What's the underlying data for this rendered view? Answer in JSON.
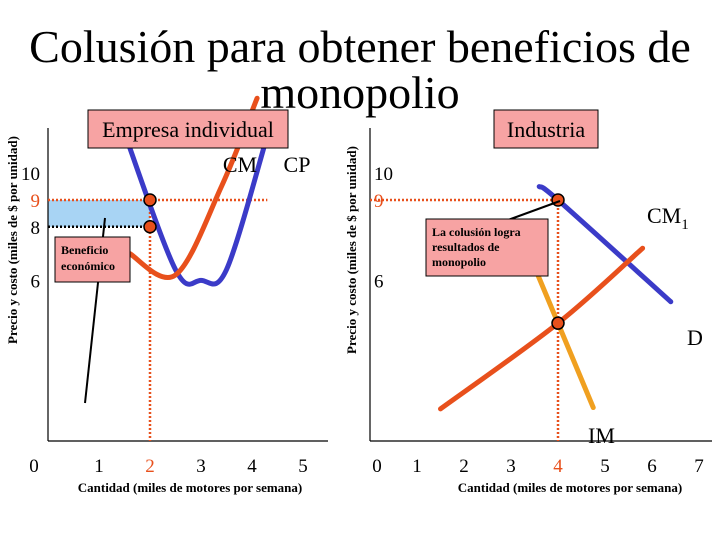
{
  "title_line1": "Colusión para obtener beneficios de",
  "title_line2": "monopolio",
  "colors": {
    "axis": "#000000",
    "cm_curve": "#e8501c",
    "cp_curve": "#3b3bc8",
    "demand": "#3b3bc8",
    "im_curve": "#f0a020",
    "guide": "#e8501c",
    "dot_fill": "#e8501c",
    "profit_area": "#a8d4f4",
    "label_box": "#f7a3a3",
    "callout_box": "#f7a3a3"
  },
  "chart_data": [
    {
      "type": "line",
      "panel_title": "Empresa individual",
      "ylabel": "Precio y costo (miles de $ por unidad)",
      "xlabel": "Cantidad (miles de motores por semana)",
      "x_ticks": [
        "0",
        "1",
        "2",
        "3",
        "4",
        "5"
      ],
      "y_ticks": [
        "6",
        "8",
        "9",
        "10"
      ],
      "highlight_x_tick": "2",
      "highlight_y_tick": "9",
      "series": [
        {
          "name": "CM",
          "values": [
            [
              1.6,
              7
            ],
            [
              2.5,
              6.2
            ],
            [
              3.4,
              9.5
            ],
            [
              4.1,
              12.8
            ]
          ]
        },
        {
          "name": "CP",
          "values": [
            [
              1.5,
              11.5
            ],
            [
              2.5,
              6.4
            ],
            [
              3.0,
              6.0
            ],
            [
              3.5,
              6.4
            ],
            [
              4.3,
              11.4
            ]
          ]
        }
      ],
      "points": [
        [
          2,
          9
        ],
        [
          2,
          8
        ]
      ],
      "profit_area": {
        "x": [
          0,
          2
        ],
        "y": [
          8,
          9
        ]
      },
      "callout": "Beneficio económico"
    },
    {
      "type": "line",
      "panel_title": "Industria",
      "ylabel": "Precio y costo (miles de $ por unidad)",
      "xlabel": "Cantidad (miles de motores por semana)",
      "x_ticks": [
        "0",
        "1",
        "2",
        "3",
        "4",
        "5",
        "6",
        "7"
      ],
      "y_ticks": [
        "6",
        "9",
        "10"
      ],
      "highlight_x_tick": "4",
      "highlight_y_tick": "9",
      "series": [
        {
          "name": "CM1",
          "values": [
            [
              1.5,
              1.2
            ],
            [
              4,
              4.4
            ],
            [
              5.8,
              7.2
            ]
          ]
        },
        {
          "name": "D",
          "values": [
            [
              3.6,
              9.5
            ],
            [
              4,
              9
            ],
            [
              6.4,
              5.2
            ]
          ]
        },
        {
          "name": "IM",
          "values": [
            [
              3.5,
              6.5
            ],
            [
              4.75,
              1.25
            ]
          ]
        }
      ],
      "points": [
        [
          4,
          9
        ],
        [
          4,
          4.4
        ]
      ],
      "callout": "La colusión logra resultados de monopolio",
      "curve_labels": {
        "cm_main": "CM",
        "cm_sub": "1",
        "d": "D",
        "im": "IM"
      }
    }
  ]
}
